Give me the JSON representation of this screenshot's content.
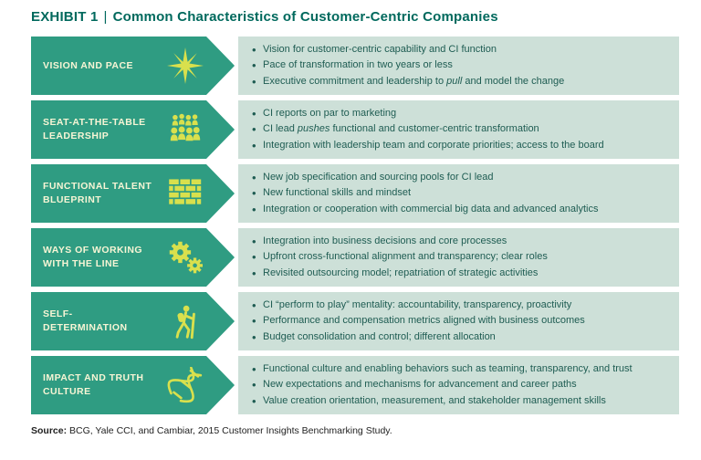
{
  "header": {
    "exhibit": "EXHIBIT 1",
    "separator": "|",
    "title": "Common Characteristics of Customer-Centric Companies"
  },
  "colors": {
    "arrow_green": "#2f9c82",
    "panel_background": "#cde0d8",
    "title_teal": "#00695d",
    "icon_yellow": "#d9e04d",
    "bullet_text": "#1e5c52"
  },
  "rows": [
    {
      "label": "VISION AND PACE",
      "icon": "starburst-icon",
      "bullets": [
        "Vision for customer-centric capability and CI function",
        "Pace of transformation in two years or less",
        "Executive commitment and leadership to *pull* and model the change"
      ]
    },
    {
      "label": "SEAT-AT-THE-TABLE LEADERSHIP",
      "icon": "people-crowd-icon",
      "bullets": [
        "CI reports on par to marketing",
        "CI lead *pushes* functional and customer-centric transformation",
        "Integration with leadership team and corporate priorities; access to the board"
      ]
    },
    {
      "label": "FUNCTIONAL TALENT BLUEPRINT",
      "icon": "brick-wall-icon",
      "bullets": [
        "New job specification and sourcing pools for CI lead",
        "New functional skills and mindset",
        "Integration or cooperation with commercial big data and advanced analytics"
      ]
    },
    {
      "label": "WAYS OF WORKING WITH THE LINE",
      "icon": "gears-icon",
      "bullets": [
        "Integration into business decisions and core processes",
        "Upfront cross-functional alignment and transparency; clear roles",
        "Revisited outsourcing model; repatriation of strategic activities"
      ]
    },
    {
      "label": "SELF-DETERMINATION",
      "icon": "hiker-icon",
      "bullets": [
        "CI “perform to play” mentality: accountability, transparency, proactivity",
        "Performance and compensation metrics aligned with business outcomes",
        "Budget consolidation and control; different allocation"
      ]
    },
    {
      "label": "IMPACT AND TRUTH CULTURE",
      "icon": "dna-icon",
      "bullets": [
        "Functional culture and enabling behaviors such as teaming, transparency, and trust",
        "New expectations and mechanisms for advancement and career paths",
        "Value creation orientation, measurement, and stakeholder management skills"
      ]
    }
  ],
  "footer": {
    "source_label": "Source:",
    "source_text": " BCG, Yale CCI, and Cambiar, 2015 Customer Insights Benchmarking Study."
  }
}
